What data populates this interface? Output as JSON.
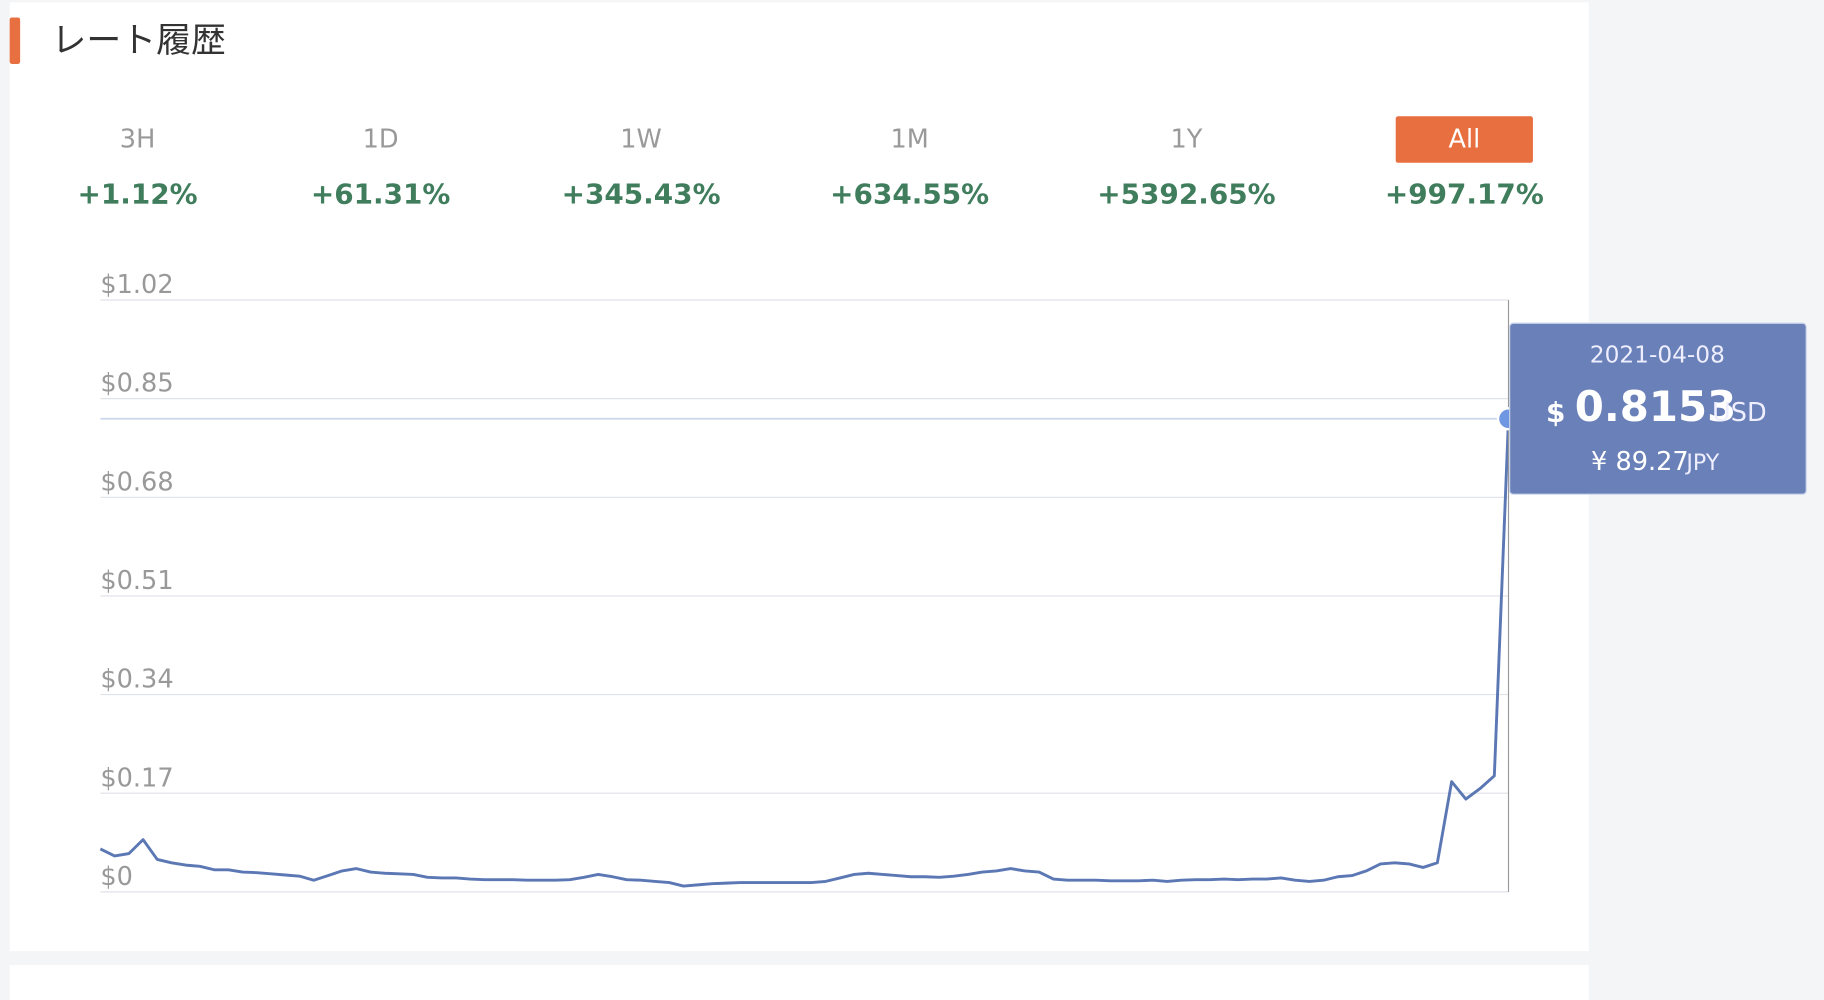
{
  "header": {
    "title": "レート履歴"
  },
  "tabs": [
    {
      "label": "3H",
      "change": "+1.12%"
    },
    {
      "label": "1D",
      "change": "+61.31%"
    },
    {
      "label": "1W",
      "change": "+345.43%"
    },
    {
      "label": "1M",
      "change": "+634.55%"
    },
    {
      "label": "1Y",
      "change": "+5392.65%"
    },
    {
      "label": "All",
      "change": "+997.17%"
    }
  ],
  "chart_data": {
    "type": "line",
    "series": [
      {
        "color": "#5b78b4",
        "values": [
          0.074,
          0.062,
          0.066,
          0.09,
          0.056,
          0.05,
          0.046,
          0.044,
          0.038,
          0.038,
          0.034,
          0.033,
          0.031,
          0.029,
          0.027,
          0.02,
          0.028,
          0.036,
          0.04,
          0.034,
          0.032,
          0.031,
          0.03,
          0.025,
          0.024,
          0.024,
          0.022,
          0.021,
          0.021,
          0.021,
          0.02,
          0.02,
          0.02,
          0.021,
          0.025,
          0.03,
          0.026,
          0.021,
          0.02,
          0.018,
          0.016,
          0.01,
          0.012,
          0.014,
          0.015,
          0.016,
          0.016,
          0.016,
          0.016,
          0.016,
          0.016,
          0.018,
          0.024,
          0.03,
          0.032,
          0.03,
          0.028,
          0.026,
          0.026,
          0.025,
          0.027,
          0.03,
          0.034,
          0.036,
          0.04,
          0.036,
          0.034,
          0.022,
          0.02,
          0.02,
          0.02,
          0.019,
          0.019,
          0.019,
          0.02,
          0.018,
          0.02,
          0.021,
          0.021,
          0.022,
          0.021,
          0.022,
          0.022,
          0.024,
          0.02,
          0.018,
          0.02,
          0.026,
          0.028,
          0.036,
          0.048,
          0.05,
          0.048,
          0.042,
          0.05,
          0.19,
          0.16,
          0.178,
          0.2,
          0.8153
        ]
      }
    ],
    "ylim": [
      0,
      1.02
    ],
    "yticks": [
      {
        "value": 0,
        "label": "$0"
      },
      {
        "value": 0.17,
        "label": "$0.17"
      },
      {
        "value": 0.34,
        "label": "$0.34"
      },
      {
        "value": 0.51,
        "label": "$0.51"
      },
      {
        "value": 0.68,
        "label": "$0.68"
      },
      {
        "value": 0.85,
        "label": "$0.85"
      },
      {
        "value": 1.02,
        "label": "$1.02"
      }
    ],
    "grid": true
  },
  "tooltip": {
    "date": "2021-04-08",
    "currency": "$",
    "price": 0.8153,
    "unit": "USD",
    "jpy": "¥ 89.27",
    "jpy_unit": "JPY"
  }
}
